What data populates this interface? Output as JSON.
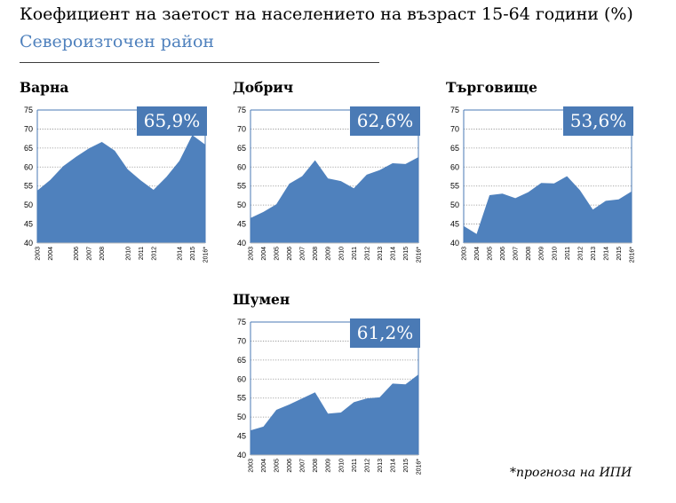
{
  "title": "Коефициент на заетост на населението на възраст 15-64 години (%)",
  "subtitle": "Североизточен район",
  "footnote": "*прогноза на ИПИ",
  "colors": {
    "area": "#4f81bd",
    "badge": "#4a7ab5",
    "axis": "#4a7ab5",
    "subtitle": "#4f81bd"
  },
  "chart_data": [
    {
      "type": "area",
      "title": "Варна",
      "badge": "65,9%",
      "categories": [
        "2003",
        "2004",
        "2005",
        "2006",
        "2007",
        "2008",
        "2009",
        "2010",
        "2011",
        "2012",
        "2013",
        "2014",
        "2015",
        "2016*"
      ],
      "x_tick_labels": [
        "2003",
        "2004",
        "2006",
        "2007",
        "2008",
        "2010",
        "2011",
        "2012",
        "2014",
        "2015",
        "2016*"
      ],
      "values": [
        53.8,
        56.6,
        60.2,
        62.7,
        64.9,
        66.6,
        64.3,
        59.4,
        56.5,
        54.0,
        57.4,
        61.6,
        68.4,
        65.9
      ],
      "yticks": [
        40,
        45,
        50,
        55,
        60,
        65,
        70,
        75
      ],
      "ylim": [
        40,
        75
      ]
    },
    {
      "type": "area",
      "title": "Добрич",
      "badge": "62,6%",
      "categories": [
        "2003",
        "2004",
        "2005",
        "2006",
        "2007",
        "2008",
        "2009",
        "2010",
        "2011",
        "2012",
        "2013",
        "2014",
        "2015",
        "2016*"
      ],
      "x_tick_labels": [
        "2003",
        "2004",
        "2005",
        "2006",
        "2007",
        "2008",
        "2009",
        "2010",
        "2011",
        "2012",
        "2013",
        "2014",
        "2015",
        "2016*"
      ],
      "values": [
        46.6,
        48.2,
        50.2,
        55.6,
        57.6,
        61.8,
        57.0,
        56.3,
        54.4,
        58.0,
        59.2,
        61.0,
        60.8,
        62.6
      ],
      "yticks": [
        40,
        45,
        50,
        55,
        60,
        65,
        70,
        75
      ],
      "ylim": [
        40,
        75
      ]
    },
    {
      "type": "area",
      "title": "Търговище",
      "badge": "53,6%",
      "categories": [
        "2003",
        "2004",
        "2005",
        "2006",
        "2007",
        "2008",
        "2009",
        "2010",
        "2011",
        "2012",
        "2013",
        "2014",
        "2015",
        "2016*"
      ],
      "x_tick_labels": [
        "2003",
        "2004",
        "2005",
        "2006",
        "2007",
        "2008",
        "2009",
        "2010",
        "2011",
        "2012",
        "2013",
        "2014",
        "2015",
        "2016*"
      ],
      "values": [
        44.5,
        42.4,
        52.6,
        53.0,
        51.8,
        53.4,
        55.8,
        55.7,
        57.6,
        53.9,
        48.8,
        51.1,
        51.5,
        53.6
      ],
      "yticks": [
        40,
        45,
        50,
        55,
        60,
        65,
        70,
        75
      ],
      "ylim": [
        40,
        75
      ]
    },
    {
      "type": "area",
      "title": "Шумен",
      "badge": "61,2%",
      "categories": [
        "2003",
        "2004",
        "2005",
        "2006",
        "2007",
        "2008",
        "2009",
        "2010",
        "2011",
        "2012",
        "2013",
        "2014",
        "2015",
        "2016*"
      ],
      "x_tick_labels": [
        "2003",
        "2004",
        "2005",
        "2006",
        "2007",
        "2008",
        "2009",
        "2010",
        "2011",
        "2012",
        "2013",
        "2014",
        "2015",
        "2016*"
      ],
      "values": [
        46.5,
        47.5,
        51.9,
        53.3,
        54.9,
        56.5,
        50.9,
        51.2,
        53.9,
        54.9,
        55.2,
        58.8,
        58.6,
        61.2
      ],
      "yticks": [
        40,
        45,
        50,
        55,
        60,
        65,
        70,
        75
      ],
      "ylim": [
        40,
        75
      ]
    }
  ]
}
